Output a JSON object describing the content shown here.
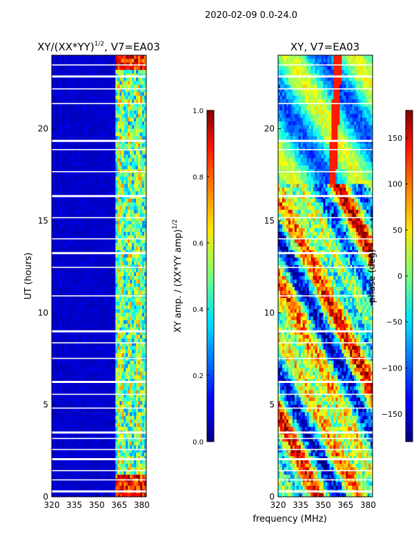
{
  "suptitle": "2020-02-09 0.0-24.0",
  "shared_xlabel": "frequency (MHz)",
  "chart_data": [
    {
      "type": "heatmap",
      "title": "XY/(XX*YY)",
      "title_exponent": "1/2",
      "title_suffix": ", V7=EA03",
      "xlabel": "",
      "ylabel": "UT (hours)",
      "xlim": [
        320,
        383
      ],
      "ylim": [
        0,
        24
      ],
      "xticks": [
        320,
        335,
        350,
        365,
        380
      ],
      "xtick_labels": [
        "320",
        "335",
        "350",
        "365",
        "380"
      ],
      "yticks": [
        0,
        5,
        10,
        15,
        20
      ],
      "ytick_labels": [
        "0",
        "5",
        "10",
        "15",
        "20"
      ],
      "colormap": "jet",
      "colorbar": {
        "label": "XY amp. / (XX*YY amp)",
        "label_exponent": "1/2",
        "range": [
          0.0,
          1.0
        ],
        "ticks": [
          0.0,
          0.2,
          0.4,
          0.6,
          0.8,
          1.0
        ],
        "tick_labels": [
          "0.0",
          "0.2",
          "0.4",
          "0.6",
          "0.8",
          "1.0"
        ]
      }
    },
    {
      "type": "heatmap",
      "title": "XY, V7=EA03",
      "xlabel": "",
      "ylabel": "phase (deg)",
      "xlim": [
        320,
        383
      ],
      "ylim": [
        0,
        24
      ],
      "xticks": [
        320,
        335,
        350,
        365,
        380
      ],
      "xtick_labels": [
        "320",
        "335",
        "350",
        "365",
        "380"
      ],
      "yticks": [
        0,
        5,
        10,
        15,
        20
      ],
      "ytick_labels": [
        "0",
        "5",
        "10",
        "15",
        "20"
      ],
      "colormap": "jet",
      "colorbar": {
        "label": "phase (deg)",
        "range": [
          -180,
          180
        ],
        "ticks": [
          -150,
          -100,
          -50,
          0,
          50,
          100,
          150
        ],
        "tick_labels": [
          "−150",
          "−100",
          "−50",
          "0",
          "50",
          "100",
          "150"
        ]
      }
    }
  ]
}
